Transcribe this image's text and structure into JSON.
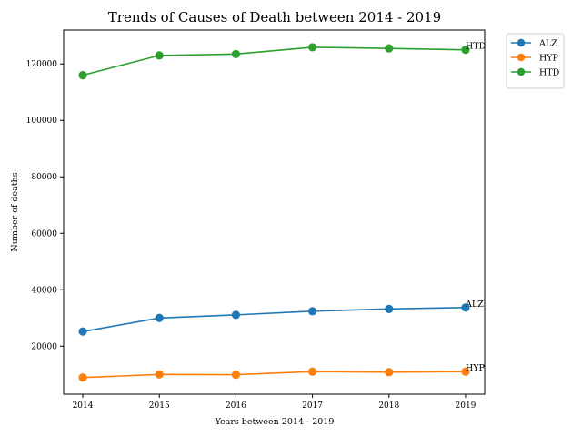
{
  "chart_data": {
    "type": "line",
    "title": "Trends of Causes of Death between 2014 - 2019",
    "xlabel": "Years between 2014 - 2019",
    "ylabel": "Number of deaths",
    "x": [
      2014,
      2015,
      2016,
      2017,
      2018,
      2019
    ],
    "xlim": [
      2013.75,
      2019.25
    ],
    "ylim": [
      3000,
      132000
    ],
    "yticks": [
      20000,
      40000,
      60000,
      80000,
      100000,
      120000
    ],
    "grid": false,
    "legend_position": "upper right, outside plot",
    "series": [
      {
        "name": "ALZ",
        "color": "#1f77b4",
        "values": [
          25200,
          30000,
          31100,
          32400,
          33200,
          33700
        ],
        "end_label": "ALZ"
      },
      {
        "name": "HYP",
        "color": "#ff7f0e",
        "values": [
          8900,
          10000,
          9900,
          11000,
          10800,
          11000
        ],
        "end_label": "HYP"
      },
      {
        "name": "HTD",
        "color": "#2ca02c",
        "values": [
          116000,
          123000,
          123500,
          125900,
          125500,
          125000
        ],
        "end_label": "HTD"
      }
    ]
  }
}
